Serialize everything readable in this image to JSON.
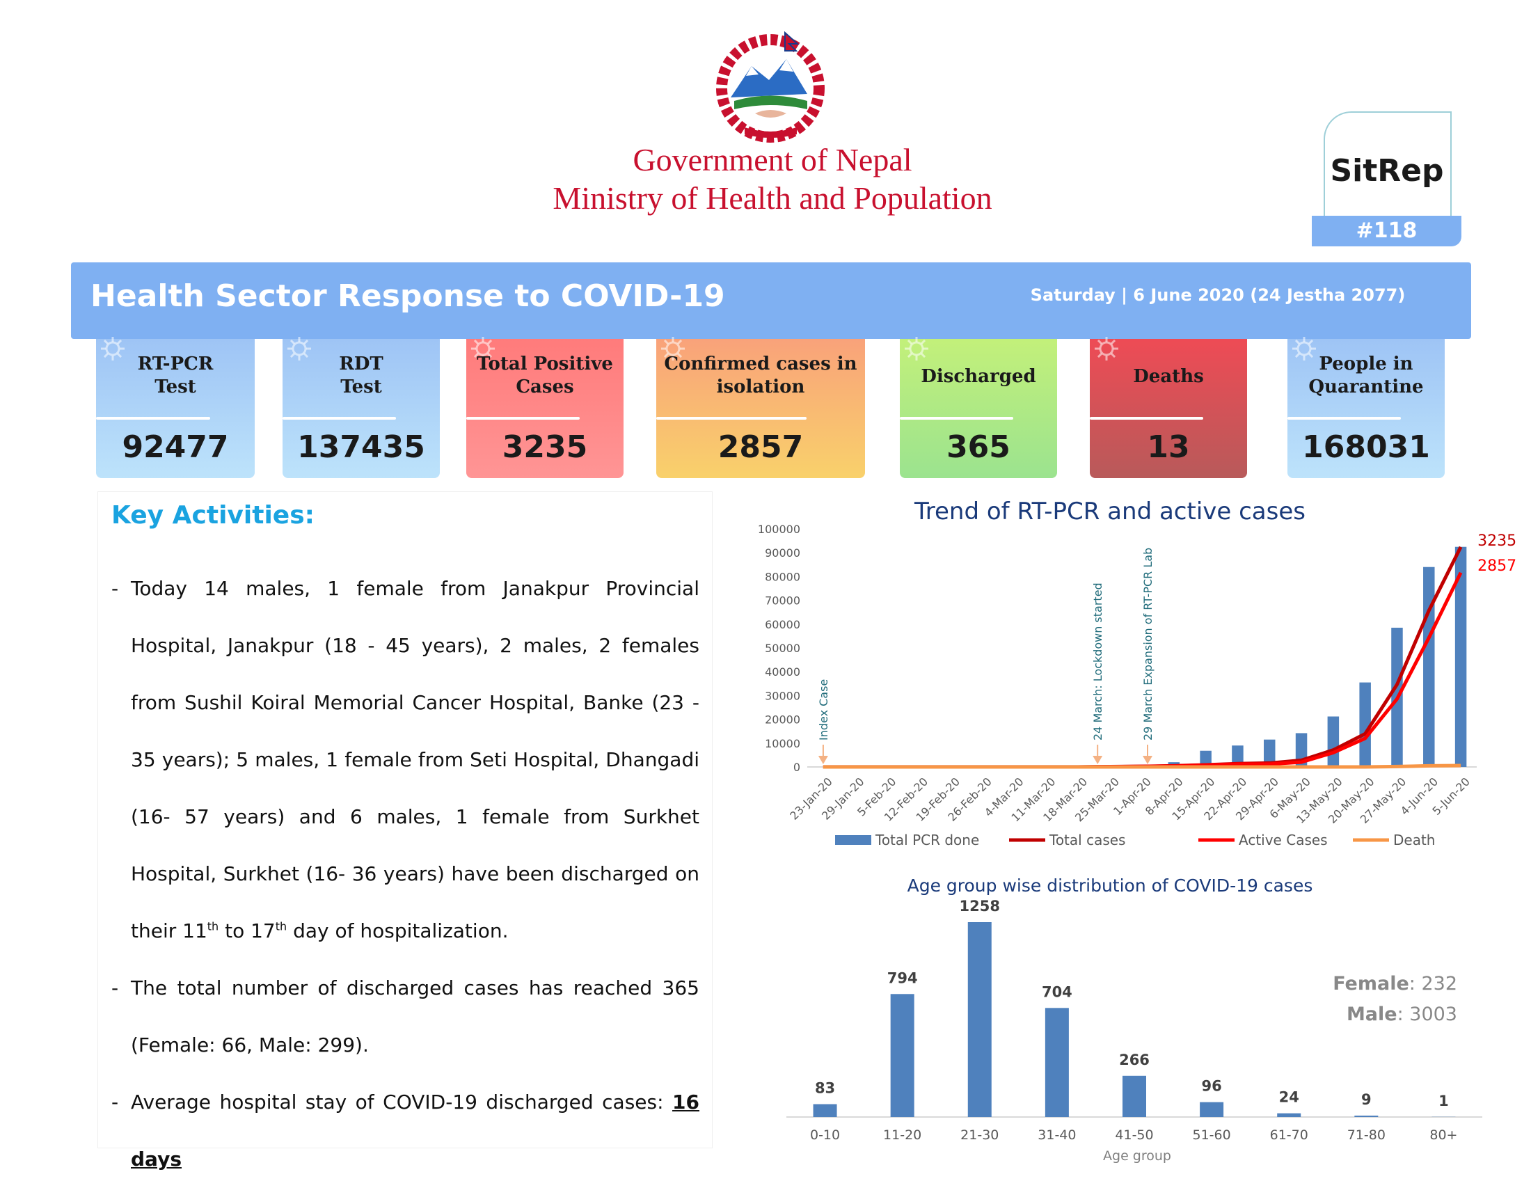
{
  "header": {
    "gov_title": "Government of Nepal",
    "ministry_title": "Ministry of Health and Population",
    "emblem_icon": "nepal-emblem-icon",
    "sitrep_label": "SitRep",
    "sitrep_number": "#118"
  },
  "banner": {
    "title": "Health Sector Response to COVID-19",
    "date": "Saturday | 6 June 2020 (24 Jestha 2077)",
    "color": "#7fb0f2"
  },
  "stats": [
    {
      "label_line1": "RT-PCR",
      "label_line2": "Test",
      "value": "92477",
      "color_top": "#9ec4f5",
      "color_bottom": "#bde3fb"
    },
    {
      "label_line1": "RDT",
      "label_line2": "Test",
      "value": "137435",
      "color_top": "#9ec4f5",
      "color_bottom": "#bde3fb"
    },
    {
      "label_line1": "Total Positive",
      "label_line2": "Cases",
      "value": "3235",
      "color_top": "#ff7b7b",
      "color_bottom": "#ff9595"
    },
    {
      "label_line1": "Confirmed cases in",
      "label_line2": "isolation",
      "value": "2857",
      "color_top": "#f9a27a",
      "color_bottom": "#f9d16b"
    },
    {
      "label_line1": "Discharged",
      "label_line2": "",
      "value": "365",
      "color_top": "#c3f07a",
      "color_bottom": "#9be38f"
    },
    {
      "label_line1": "Deaths",
      "label_line2": "",
      "value": "13",
      "color_top": "#ee4b55",
      "color_bottom": "#b85a5a"
    },
    {
      "label_line1": "People in",
      "label_line2": "Quarantine",
      "value": "168031",
      "color_top": "#9ec4f5",
      "color_bottom": "#bde3fb"
    }
  ],
  "key_activities": {
    "title": "Key Activities:",
    "bullets": [
      {
        "before": "Today 14 males, 1 female from Janakpur Provincial Hospital, Janakpur (18 - 45 years), 2 males, 2 females from Sushil Koiral Memorial Cancer Hospital, Banke (23 - 35 years); 5 males, 1 female from Seti Hospital, Dhangadi (16- 57 years) and 6 males, 1 female from Surkhet Hospital, Surkhet (16- 36 years) have been discharged on their 11",
        "sup1": "th",
        "mid": " to 17",
        "sup2": "th",
        "after": " day of hospitalization."
      },
      {
        "text": "The total number of discharged cases has reached 365 (Female: 66, Male: 299)."
      },
      {
        "text": "Average hospital stay of COVID-19 discharged cases: ",
        "bold": "16 days"
      }
    ]
  },
  "chart_data": [
    {
      "type": "bar",
      "title": "Trend of RT-PCR and active cases",
      "categories": [
        "23-Jan-20",
        "29-Jan-20",
        "5-Feb-20",
        "12-Feb-20",
        "19-Feb-20",
        "26-Feb-20",
        "4-Mar-20",
        "11-Mar-20",
        "18-Mar-20",
        "25-Mar-20",
        "1-Apr-20",
        "8-Apr-20",
        "15-Apr-20",
        "22-Apr-20",
        "29-Apr-20",
        "6-May-20",
        "13-May-20",
        "20-May-20",
        "27-May-20",
        "4-Jun-20",
        "5-Jun-20"
      ],
      "y_ticks": [
        "0",
        "10000",
        "20000",
        "30000",
        "40000",
        "50000",
        "60000",
        "70000",
        "80000",
        "90000",
        "100000"
      ],
      "ylim": [
        0,
        100000
      ],
      "series": [
        {
          "name": "Total PCR done",
          "kind": "bar",
          "color": "#4f81bd",
          "values": [
            0,
            0,
            0,
            0,
            0,
            0,
            0,
            0,
            0,
            0,
            0,
            2000,
            6800,
            9000,
            11500,
            14200,
            21200,
            35500,
            58500,
            84000,
            92477
          ]
        },
        {
          "name": "Total  cases",
          "kind": "line",
          "color": "#c00000",
          "values": [
            1,
            1,
            1,
            1,
            1,
            1,
            1,
            1,
            1,
            5,
            9,
            16,
            31,
            48,
            57,
            99,
            249,
            487,
            1212,
            2300,
            3235
          ]
        },
        {
          "name": "Active Cases",
          "kind": "line",
          "color": "#ff0000",
          "values": [
            0,
            0,
            0,
            0,
            0,
            0,
            0,
            0,
            0,
            4,
            8,
            14,
            28,
            42,
            42,
            70,
            210,
            420,
            1000,
            1900,
            2857
          ]
        },
        {
          "name": "Death",
          "kind": "line",
          "color": "#f79646",
          "values": [
            0,
            0,
            0,
            0,
            0,
            0,
            0,
            0,
            0,
            0,
            0,
            0,
            0,
            0,
            0,
            0,
            0,
            0,
            4,
            11,
            13
          ]
        }
      ],
      "line_scale": "secondary axis (not printed)",
      "end_labels": [
        "3235",
        "2857"
      ],
      "annotations": [
        {
          "text": "Index Case",
          "category": "23-Jan-20"
        },
        {
          "text": "24 March: Lockdown started",
          "category": "25-Mar-20"
        },
        {
          "text": "29 March Expansion of RT-PCR Lab",
          "category": "1-Apr-20"
        }
      ],
      "legend": "bottom"
    },
    {
      "type": "bar",
      "title": "Age group wise distribution of COVID-19 cases",
      "categories": [
        "0-10",
        "11-20",
        "21-30",
        "31-40",
        "41-50",
        "51-60",
        "61-70",
        "71-80",
        "80+"
      ],
      "values": [
        83,
        794,
        1258,
        704,
        266,
        96,
        24,
        9,
        1
      ],
      "xlabel": "Age group",
      "color": "#4f81bd",
      "gender": {
        "female_key": "Female",
        "female_value": ": 232",
        "male_key": "Male",
        "male_value": ": 3003"
      }
    }
  ]
}
